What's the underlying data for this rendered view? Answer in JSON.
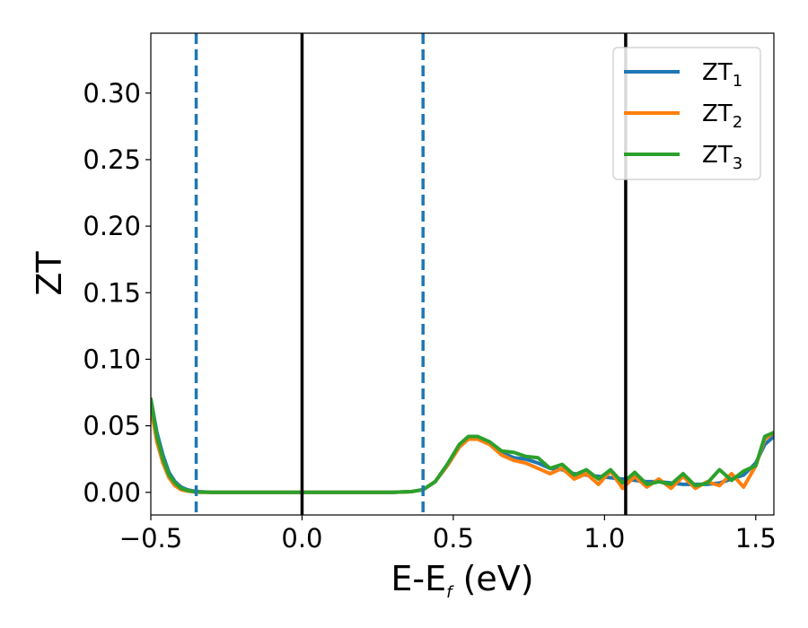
{
  "chart_data": {
    "type": "line",
    "xlabel_main": "E-E",
    "xlabel_sub": "f",
    "xlabel_unit": " (eV)",
    "ylabel": "ZT",
    "xlim": [
      -0.5,
      1.56
    ],
    "ylim": [
      -0.017,
      0.345
    ],
    "x_ticks": [
      -0.5,
      0.0,
      0.5,
      1.0,
      1.5
    ],
    "x_tick_labels": [
      "−0.5",
      "0.0",
      "0.5",
      "1.0",
      "1.5"
    ],
    "y_ticks": [
      0.0,
      0.05,
      0.1,
      0.15,
      0.2,
      0.25,
      0.3
    ],
    "y_tick_labels": [
      "0.00",
      "0.05",
      "0.10",
      "0.15",
      "0.20",
      "0.25",
      "0.30"
    ],
    "grid": false,
    "legend_position": "top-right",
    "vlines_solid": [
      0.0,
      1.07
    ],
    "vlines_dashed": [
      -0.35,
      0.4
    ],
    "vline_solid_color": "#000000",
    "vline_dashed_color": "#1f77b4",
    "series": [
      {
        "name_main": "ZT",
        "name_sub": "1",
        "color": "#1f77b4",
        "x": [
          -0.5,
          -0.48,
          -0.46,
          -0.44,
          -0.42,
          -0.4,
          -0.38,
          -0.36,
          -0.34,
          -0.3,
          -0.2,
          -0.1,
          0.0,
          0.1,
          0.2,
          0.3,
          0.36,
          0.4,
          0.44,
          0.48,
          0.52,
          0.55,
          0.58,
          0.62,
          0.66,
          0.7,
          0.74,
          0.78,
          0.82,
          0.86,
          0.9,
          0.94,
          0.98,
          1.02,
          1.06,
          1.1,
          1.14,
          1.18,
          1.22,
          1.26,
          1.3,
          1.34,
          1.38,
          1.42,
          1.46,
          1.5,
          1.53,
          1.56
        ],
        "values": [
          0.07,
          0.045,
          0.028,
          0.015,
          0.008,
          0.004,
          0.002,
          0.001,
          0.0005,
          0.0,
          0.0,
          0.0,
          0.0,
          0.0,
          0.0,
          0.0,
          0.0005,
          0.002,
          0.008,
          0.02,
          0.034,
          0.041,
          0.041,
          0.037,
          0.03,
          0.026,
          0.025,
          0.022,
          0.018,
          0.017,
          0.014,
          0.013,
          0.012,
          0.011,
          0.01,
          0.009,
          0.008,
          0.008,
          0.007,
          0.006,
          0.006,
          0.006,
          0.007,
          0.01,
          0.013,
          0.022,
          0.036,
          0.042
        ]
      },
      {
        "name_main": "ZT",
        "name_sub": "2",
        "color": "#ff7f0e",
        "x": [
          -0.5,
          -0.48,
          -0.46,
          -0.44,
          -0.42,
          -0.4,
          -0.38,
          -0.36,
          -0.34,
          -0.3,
          -0.2,
          -0.1,
          0.0,
          0.1,
          0.2,
          0.3,
          0.36,
          0.4,
          0.44,
          0.48,
          0.52,
          0.55,
          0.58,
          0.62,
          0.66,
          0.7,
          0.74,
          0.78,
          0.82,
          0.86,
          0.9,
          0.94,
          0.98,
          1.02,
          1.06,
          1.1,
          1.14,
          1.18,
          1.22,
          1.26,
          1.3,
          1.34,
          1.38,
          1.42,
          1.46,
          1.5,
          1.53,
          1.56
        ],
        "values": [
          0.064,
          0.038,
          0.022,
          0.011,
          0.005,
          0.002,
          0.001,
          0.0004,
          0.0,
          0.0,
          0.0,
          0.0,
          0.0,
          0.0,
          0.0,
          0.0,
          0.0005,
          0.002,
          0.008,
          0.02,
          0.034,
          0.04,
          0.04,
          0.036,
          0.028,
          0.024,
          0.022,
          0.018,
          0.014,
          0.018,
          0.01,
          0.014,
          0.006,
          0.016,
          0.003,
          0.012,
          0.004,
          0.01,
          0.003,
          0.012,
          0.003,
          0.008,
          0.005,
          0.014,
          0.004,
          0.02,
          0.04,
          0.045
        ]
      },
      {
        "name_main": "ZT",
        "name_sub": "3",
        "color": "#2ca02c",
        "x": [
          -0.5,
          -0.48,
          -0.46,
          -0.44,
          -0.42,
          -0.4,
          -0.38,
          -0.36,
          -0.34,
          -0.3,
          -0.2,
          -0.1,
          0.0,
          0.1,
          0.2,
          0.3,
          0.36,
          0.4,
          0.44,
          0.48,
          0.52,
          0.55,
          0.58,
          0.62,
          0.66,
          0.7,
          0.74,
          0.78,
          0.82,
          0.86,
          0.9,
          0.94,
          0.98,
          1.02,
          1.06,
          1.1,
          1.14,
          1.18,
          1.22,
          1.26,
          1.3,
          1.34,
          1.38,
          1.42,
          1.46,
          1.5,
          1.53,
          1.56
        ],
        "values": [
          0.07,
          0.042,
          0.025,
          0.013,
          0.007,
          0.003,
          0.0015,
          0.0006,
          0.0002,
          0.0,
          0.0,
          0.0,
          0.0,
          0.0,
          0.0,
          0.0,
          0.0005,
          0.002,
          0.008,
          0.021,
          0.036,
          0.042,
          0.042,
          0.038,
          0.031,
          0.03,
          0.027,
          0.026,
          0.018,
          0.021,
          0.013,
          0.017,
          0.01,
          0.017,
          0.007,
          0.015,
          0.006,
          0.008,
          0.006,
          0.014,
          0.005,
          0.007,
          0.017,
          0.009,
          0.016,
          0.02,
          0.042,
          0.045
        ]
      }
    ]
  }
}
